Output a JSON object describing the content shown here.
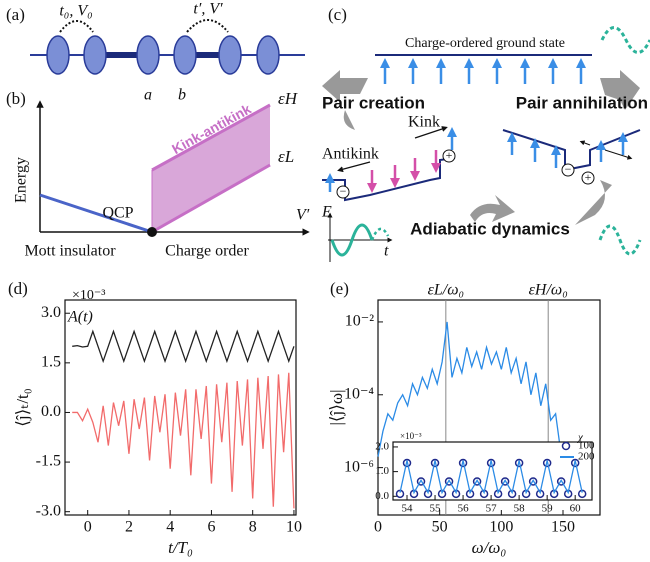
{
  "diagrams": {
    "a": {
      "label": "(a)",
      "hop0": "t₀, V₀",
      "hop1": "t′, V′",
      "site_a": "a",
      "site_b": "b"
    },
    "b": {
      "label": "(b)",
      "ylabel": "Energy",
      "xlabel": "V′",
      "qcp": "QCP",
      "left_phase": "Mott insulator",
      "right_phase": "Charge order",
      "band": "Kink-antikink",
      "upper": "εH",
      "lower": "εL"
    },
    "c": {
      "label": "(c)",
      "ground": "Charge-ordered ground state",
      "creation": "Pair creation",
      "annihilation": "Pair annihilation",
      "kink": "Kink",
      "antikink": "Antikink",
      "dynamics": "Adiabatic dynamics",
      "field": "E",
      "time": "t"
    }
  },
  "chart_data": [
    {
      "type": "line",
      "panel_label": "(d)",
      "xlabel": "t/T₀",
      "ylabel": "⟨ĵ⟩ₜ/t₀",
      "exponent_label": "×10⁻³",
      "annotation": "A(t)",
      "xlim": [
        -1.1,
        10.1
      ],
      "ylim": [
        -3.1,
        3.4
      ],
      "xticks": [
        0,
        2,
        4,
        6,
        8,
        10
      ],
      "yticks": [
        {
          "value": -3,
          "label": "-3.0"
        },
        -1.5,
        {
          "value": 0,
          "label": "0.0"
        },
        1.5,
        {
          "value": 3,
          "label": "3.0"
        }
      ],
      "x": [
        -0.75,
        -0.5,
        -0.25,
        0,
        0.25,
        0.5,
        0.75,
        1,
        1.25,
        1.5,
        1.75,
        2,
        2.25,
        2.5,
        2.75,
        3,
        3.25,
        3.5,
        3.75,
        4,
        4.25,
        4.5,
        4.75,
        5,
        5.25,
        5.5,
        5.75,
        6,
        6.25,
        6.5,
        6.75,
        7,
        7.25,
        7.5,
        7.75,
        8,
        8.25,
        8.5,
        8.75,
        9,
        9.25,
        9.5,
        9.75,
        10
      ],
      "series": [
        {
          "color": "#222222",
          "values": [
            2.0,
            2.02,
            1.98,
            2.0,
            2.45,
            2.0,
            1.55,
            2.0,
            2.45,
            2.0,
            1.55,
            2.0,
            2.45,
            2.0,
            1.55,
            2.0,
            2.45,
            2.0,
            1.55,
            2.0,
            2.45,
            2.0,
            1.55,
            2.0,
            2.45,
            2.0,
            1.55,
            2.0,
            2.45,
            2.0,
            1.55,
            2.0,
            2.45,
            2.0,
            1.55,
            2.0,
            2.45,
            2.0,
            1.55,
            2.0,
            2.45,
            2.0,
            1.55,
            2.0
          ]
        },
        {
          "color": "#f26b6b",
          "values": [
            0.0,
            0.0,
            -0.25,
            0.1,
            -0.3,
            -0.9,
            0.2,
            -1.0,
            0.3,
            -0.4,
            0.35,
            -1.25,
            0.4,
            -0.5,
            0.45,
            -1.45,
            0.5,
            -0.6,
            0.55,
            -1.7,
            0.6,
            -0.7,
            0.7,
            -1.9,
            0.7,
            -0.8,
            0.8,
            -2.15,
            0.85,
            -0.9,
            0.9,
            -2.4,
            0.95,
            -1.0,
            1.0,
            -2.6,
            1.05,
            -1.1,
            1.1,
            -2.85,
            1.15,
            -1.2,
            1.2,
            -2.9
          ]
        }
      ]
    },
    {
      "type": "line",
      "panel_label": "(e)",
      "xlabel": "ω/ω₀",
      "ylabel": "|⟨ĵ⟩ω|",
      "log_y": true,
      "xlim": [
        0,
        180
      ],
      "ylim": [
        5e-08,
        0.04
      ],
      "xticks": [
        0,
        50,
        100,
        150
      ],
      "yticks": [
        {
          "value": 1e-06,
          "label": "10⁻⁶"
        },
        {
          "value": 0.0001,
          "label": "10⁻⁴"
        },
        {
          "value": 0.01,
          "label": "10⁻²"
        }
      ],
      "ref_lines": [
        {
          "value": 55,
          "label": "εL/ω₀"
        },
        {
          "value": 138,
          "label": "εH/ω₀"
        }
      ],
      "x": [
        0,
        4,
        8,
        12,
        16,
        20,
        24,
        28,
        32,
        36,
        40,
        44,
        48,
        52,
        56,
        60,
        64,
        68,
        72,
        76,
        80,
        84,
        88,
        92,
        96,
        100,
        104,
        108,
        112,
        116,
        120,
        124,
        128,
        132,
        136,
        140,
        144,
        148,
        152
      ],
      "series": [
        {
          "color": "#2b8be6",
          "values": [
            2e-06,
            1e-05,
            3e-05,
            2e-05,
            6e-05,
            0.0001,
            5e-05,
            0.0002,
            0.0001,
            0.0003,
            0.00015,
            0.0005,
            0.0002,
            0.0008,
            0.01,
            0.0003,
            0.001,
            0.0004,
            0.002,
            0.0006,
            0.0015,
            0.0005,
            0.002,
            0.0007,
            0.0015,
            0.0005,
            0.002,
            0.0004,
            0.001,
            0.0002,
            0.0008,
            0.0001,
            0.0004,
            5e-05,
            0.0002,
            2e-05,
            3e-05,
            3e-06,
            1e-06
          ]
        }
      ]
    },
    {
      "type": "line",
      "exponent_label": "×10⁻³",
      "legend_title": "χ",
      "xlim": [
        53.5,
        60.6
      ],
      "ylim": [
        -0.15,
        2.2
      ],
      "xticks": [
        54,
        55,
        56,
        57,
        58,
        59,
        60
      ],
      "yticks": [
        {
          "value": 0,
          "label": "0.0"
        },
        {
          "value": 1,
          "label": "1.0"
        },
        {
          "value": 2,
          "label": "2.0"
        }
      ],
      "x": [
        53.75,
        54,
        54.25,
        54.5,
        54.75,
        55,
        55.25,
        55.5,
        55.75,
        56,
        56.25,
        56.5,
        56.75,
        57,
        57.25,
        57.5,
        57.75,
        58,
        58.25,
        58.5,
        58.75,
        59,
        59.25,
        59.5,
        59.75,
        60,
        60.25
      ],
      "series": [
        {
          "name": "100",
          "color": "#1f2a8c",
          "mode": "markers",
          "values": [
            0.1,
            1.35,
            0.1,
            0.6,
            0.1,
            1.35,
            0.1,
            0.6,
            0.1,
            1.35,
            0.1,
            0.6,
            0.1,
            1.35,
            0.1,
            0.6,
            0.1,
            1.35,
            0.1,
            0.6,
            0.1,
            1.35,
            0.1,
            0.6,
            0.1,
            1.35,
            0.1
          ]
        },
        {
          "name": "200",
          "color": "#2b8be6",
          "mode": "line",
          "values": [
            0.15,
            1.45,
            0.15,
            0.65,
            0.15,
            1.45,
            0.15,
            0.65,
            0.15,
            1.45,
            0.15,
            0.65,
            0.15,
            1.45,
            0.15,
            0.65,
            0.15,
            1.45,
            0.15,
            0.65,
            0.15,
            1.45,
            0.15,
            0.65,
            0.15,
            1.45,
            0.15
          ]
        }
      ]
    }
  ]
}
